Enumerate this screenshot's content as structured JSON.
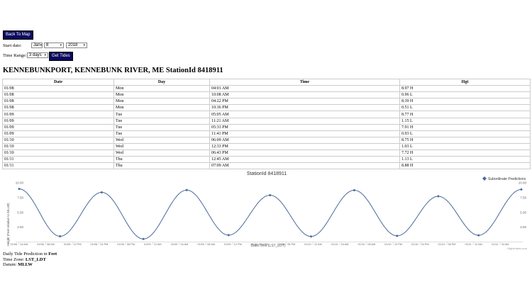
{
  "controls": {
    "back_label": "Back To Map",
    "start_date_label": "Start date:",
    "month": "Jan",
    "day": "8",
    "year": "2018",
    "time_range_label": "Time Range:",
    "range": "3 days",
    "get_tides_label": "Get Tides"
  },
  "station_title": "KENNEBUNKPORT, KENNEBUNK RIVER, ME StationId 8418911",
  "table": {
    "headers": [
      "Date",
      "Day",
      "Time",
      "Hgt"
    ],
    "rows": [
      [
        "01/08",
        "Mon",
        "04:01 AM",
        "8.97 H"
      ],
      [
        "01/08",
        "Mon",
        "10:08 AM",
        "0.96 L"
      ],
      [
        "01/08",
        "Mon",
        "04:22 PM",
        "8.39 H"
      ],
      [
        "01/08",
        "Mon",
        "10:36 PM",
        "0.51 L"
      ],
      [
        "01/09",
        "Tue",
        "05:05 AM",
        "8.77 H"
      ],
      [
        "01/09",
        "Tue",
        "11:21 AM",
        "1.15 L"
      ],
      [
        "01/09",
        "Tue",
        "05:33 PM",
        "7.91 H"
      ],
      [
        "01/09",
        "Tue",
        "11:41 PM",
        "0.93 L"
      ],
      [
        "01/10",
        "Wed",
        "06:09 AM",
        "8.75 H"
      ],
      [
        "01/10",
        "Wed",
        "12:33 PM",
        "1.03 L"
      ],
      [
        "01/10",
        "Wed",
        "06:43 PM",
        "7.72 H"
      ],
      [
        "01/11",
        "Thu",
        "12:45 AM",
        "1.13 L"
      ],
      [
        "01/11",
        "Thu",
        "07:09 AM",
        "8.88 H"
      ]
    ]
  },
  "chart_data": {
    "type": "line",
    "title": "StationId 8418911",
    "xlabel": "Date/Time (LST_LDT)",
    "ylabel": "Height (Feet relative to MLLW)",
    "legend": "top-right",
    "grid": false,
    "ylim": [
      0,
      10
    ],
    "y_ticks": [
      "10.00",
      "7.50",
      "5.00",
      "2.50"
    ],
    "y_ticks_right": [
      "10.00",
      "7.50",
      "5.00",
      "2.50"
    ],
    "x_ticks": [
      "01/08 ~ 04 AM",
      "01/08 ~ 08 AM",
      "01/08 ~ 12 PM",
      "01/08 ~ 04 PM",
      "01/08 ~ 08 PM",
      "01/09 ~ 12 AM",
      "01/09 ~ 04 AM",
      "01/09 ~ 08 AM",
      "01/09 ~ 12 PM",
      "01/09 ~ 04 PM",
      "01/09 ~ 08 PM",
      "01/10 ~ 12 AM",
      "01/10 ~ 04 AM",
      "01/10 ~ 08 AM",
      "01/10 ~ 12 PM",
      "01/10 ~ 04 PM",
      "01/10 ~ 08 PM",
      "01/11 ~ 12 AM",
      "01/11 ~ 04 AM"
    ],
    "series": [
      {
        "name": "Subordinate Predictions",
        "color": "#4a6a9a",
        "x": [
          "01/08 04:01 AM",
          "01/08 10:08 AM",
          "01/08 04:22 PM",
          "01/08 10:36 PM",
          "01/09 05:05 AM",
          "01/09 11:21 AM",
          "01/09 05:33 PM",
          "01/09 11:41 PM",
          "01/10 06:09 AM",
          "01/10 12:33 PM",
          "01/10 06:43 PM",
          "01/11 12:45 AM",
          "01/11 07:09 AM"
        ],
        "values": [
          8.97,
          0.96,
          8.39,
          0.51,
          8.77,
          1.15,
          7.91,
          0.93,
          8.75,
          1.03,
          7.72,
          1.13,
          8.88
        ]
      }
    ],
    "credit": "Highcharts.com"
  },
  "footer": {
    "line1_prefix": "Daily Tide Prediction in ",
    "line1_value": "Feet",
    "line2_prefix": "Time Zone: ",
    "line2_value": "LST_LDT",
    "line3_prefix": "Datum: ",
    "line3_value": "MLLW"
  }
}
